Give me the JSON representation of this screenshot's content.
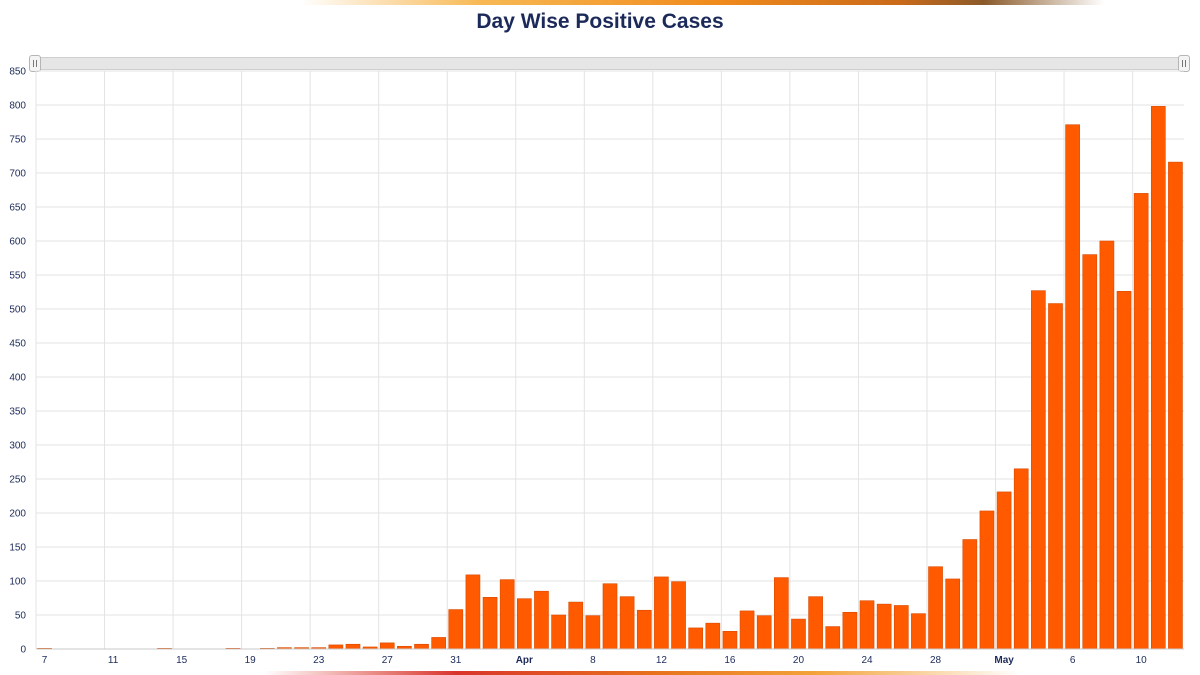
{
  "title": "Day Wise Positive Cases",
  "colors": {
    "bar": "#ff5a00",
    "bar_border": "#d94a00",
    "grid": "#e3e3e3",
    "text": "#1c2a5a"
  },
  "chart_data": {
    "type": "bar",
    "title": "Day Wise Positive Cases",
    "xlabel": "",
    "ylabel": "",
    "ylim": [
      0,
      850
    ],
    "yticks": [
      0,
      50,
      100,
      150,
      200,
      250,
      300,
      350,
      400,
      450,
      500,
      550,
      600,
      650,
      700,
      750,
      800,
      850
    ],
    "grid": true,
    "legend": "none",
    "x_start_date": "2020-03-07",
    "x_end_date": "2020-05-12",
    "xtick_labels": [
      {
        "date": "2020-03-07",
        "label": "7"
      },
      {
        "date": "2020-03-11",
        "label": "11"
      },
      {
        "date": "2020-03-15",
        "label": "15"
      },
      {
        "date": "2020-03-19",
        "label": "19"
      },
      {
        "date": "2020-03-23",
        "label": "23"
      },
      {
        "date": "2020-03-27",
        "label": "27"
      },
      {
        "date": "2020-03-31",
        "label": "31"
      },
      {
        "date": "2020-04-04",
        "label": "Apr",
        "major": true
      },
      {
        "date": "2020-04-08",
        "label": "8"
      },
      {
        "date": "2020-04-12",
        "label": "12"
      },
      {
        "date": "2020-04-16",
        "label": "16"
      },
      {
        "date": "2020-04-20",
        "label": "20"
      },
      {
        "date": "2020-04-24",
        "label": "24"
      },
      {
        "date": "2020-04-28",
        "label": "28"
      },
      {
        "date": "2020-05-02",
        "label": "May",
        "major": true
      },
      {
        "date": "2020-05-06",
        "label": "6"
      },
      {
        "date": "2020-05-10",
        "label": "10"
      }
    ],
    "x": [
      "2020-03-07",
      "2020-03-08",
      "2020-03-09",
      "2020-03-10",
      "2020-03-11",
      "2020-03-12",
      "2020-03-13",
      "2020-03-14",
      "2020-03-15",
      "2020-03-16",
      "2020-03-17",
      "2020-03-18",
      "2020-03-19",
      "2020-03-20",
      "2020-03-21",
      "2020-03-22",
      "2020-03-23",
      "2020-03-24",
      "2020-03-25",
      "2020-03-26",
      "2020-03-27",
      "2020-03-28",
      "2020-03-29",
      "2020-03-30",
      "2020-03-31",
      "2020-04-01",
      "2020-04-02",
      "2020-04-03",
      "2020-04-04",
      "2020-04-05",
      "2020-04-06",
      "2020-04-07",
      "2020-04-08",
      "2020-04-09",
      "2020-04-10",
      "2020-04-11",
      "2020-04-12",
      "2020-04-13",
      "2020-04-14",
      "2020-04-15",
      "2020-04-16",
      "2020-04-17",
      "2020-04-18",
      "2020-04-19",
      "2020-04-20",
      "2020-04-21",
      "2020-04-22",
      "2020-04-23",
      "2020-04-24",
      "2020-04-25",
      "2020-04-26",
      "2020-04-27",
      "2020-04-28",
      "2020-04-29",
      "2020-04-30",
      "2020-05-01",
      "2020-05-02",
      "2020-05-03",
      "2020-05-04",
      "2020-05-05",
      "2020-05-06",
      "2020-05-07",
      "2020-05-08",
      "2020-05-09",
      "2020-05-10",
      "2020-05-11",
      "2020-05-12"
    ],
    "values": [
      1,
      0,
      0,
      0,
      0,
      0,
      0,
      1,
      0,
      0,
      0,
      1,
      0,
      1,
      2,
      2,
      2,
      6,
      7,
      3,
      9,
      4,
      7,
      17,
      58,
      109,
      76,
      102,
      74,
      85,
      50,
      69,
      49,
      96,
      77,
      57,
      106,
      99,
      31,
      38,
      26,
      56,
      49,
      105,
      44,
      77,
      33,
      54,
      71,
      66,
      64,
      52,
      121,
      103,
      161,
      203,
      231,
      265,
      527,
      508,
      771,
      580,
      600,
      526,
      670,
      798,
      716
    ]
  }
}
